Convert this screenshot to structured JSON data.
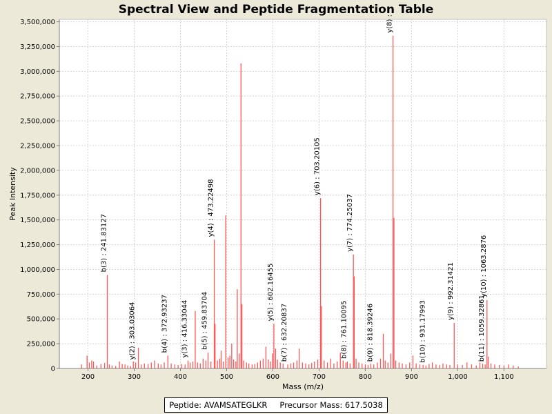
{
  "chart_data": {
    "type": "bar",
    "title": "Spectral View and Peptide Fragmentation Table",
    "xlabel": "Mass (m/z)",
    "ylabel": "Peak Intensity",
    "xlim": [
      138,
      1192
    ],
    "ylim": [
      0,
      3525000
    ],
    "x_ticks": [
      200,
      300,
      400,
      500,
      600,
      700,
      800,
      900,
      1000,
      1100
    ],
    "x_tick_labels": [
      "200",
      "300",
      "400",
      "500",
      "600",
      "700",
      "800",
      "900",
      "1,000",
      "1,100"
    ],
    "y_ticks": [
      0,
      250000,
      500000,
      750000,
      1000000,
      1250000,
      1500000,
      1750000,
      2000000,
      2250000,
      2500000,
      2750000,
      3000000,
      3250000,
      3500000
    ],
    "y_tick_labels": [
      "0",
      "250,000",
      "500,000",
      "750,000",
      "1,000,000",
      "1,250,000",
      "1,500,000",
      "1,750,000",
      "2,000,000",
      "2,250,000",
      "2,500,000",
      "2,750,000",
      "3,000,000",
      "3,250,000",
      "3,500,000"
    ],
    "grid": true,
    "bar_color": "#ff5555",
    "peaks": [
      {
        "mz": 186,
        "intensity": 40000
      },
      {
        "mz": 198,
        "intensity": 130000
      },
      {
        "mz": 203,
        "intensity": 60000
      },
      {
        "mz": 208,
        "intensity": 80000
      },
      {
        "mz": 212,
        "intensity": 70000
      },
      {
        "mz": 219,
        "intensity": 30000
      },
      {
        "mz": 228,
        "intensity": 45000
      },
      {
        "mz": 236,
        "intensity": 55000
      },
      {
        "mz": 241.83,
        "intensity": 945000
      },
      {
        "mz": 246,
        "intensity": 40000
      },
      {
        "mz": 252,
        "intensity": 30000
      },
      {
        "mz": 260,
        "intensity": 25000
      },
      {
        "mz": 268,
        "intensity": 70000
      },
      {
        "mz": 274,
        "intensity": 45000
      },
      {
        "mz": 280,
        "intensity": 40000
      },
      {
        "mz": 286,
        "intensity": 30000
      },
      {
        "mz": 292,
        "intensity": 25000
      },
      {
        "mz": 298,
        "intensity": 70000
      },
      {
        "mz": 303.03,
        "intensity": 60000
      },
      {
        "mz": 309,
        "intensity": 210000
      },
      {
        "mz": 315,
        "intensity": 40000
      },
      {
        "mz": 322,
        "intensity": 50000
      },
      {
        "mz": 330,
        "intensity": 45000
      },
      {
        "mz": 337,
        "intensity": 60000
      },
      {
        "mz": 344,
        "intensity": 80000
      },
      {
        "mz": 352,
        "intensity": 50000
      },
      {
        "mz": 358,
        "intensity": 40000
      },
      {
        "mz": 365,
        "intensity": 60000
      },
      {
        "mz": 372.93,
        "intensity": 130000
      },
      {
        "mz": 380,
        "intensity": 50000
      },
      {
        "mz": 388,
        "intensity": 40000
      },
      {
        "mz": 395,
        "intensity": 35000
      },
      {
        "mz": 403,
        "intensity": 45000
      },
      {
        "mz": 410,
        "intensity": 40000
      },
      {
        "mz": 416.33,
        "intensity": 80000
      },
      {
        "mz": 421,
        "intensity": 60000
      },
      {
        "mz": 427,
        "intensity": 70000
      },
      {
        "mz": 432,
        "intensity": 580000
      },
      {
        "mz": 437,
        "intensity": 60000
      },
      {
        "mz": 443,
        "intensity": 50000
      },
      {
        "mz": 449,
        "intensity": 100000
      },
      {
        "mz": 455,
        "intensity": 80000
      },
      {
        "mz": 459.84,
        "intensity": 160000
      },
      {
        "mz": 466,
        "intensity": 70000
      },
      {
        "mz": 473.22,
        "intensity": 1300000
      },
      {
        "mz": 475,
        "intensity": 450000
      },
      {
        "mz": 480,
        "intensity": 80000
      },
      {
        "mz": 485,
        "intensity": 100000
      },
      {
        "mz": 488,
        "intensity": 180000
      },
      {
        "mz": 493,
        "intensity": 70000
      },
      {
        "mz": 498,
        "intensity": 1545000
      },
      {
        "mz": 503,
        "intensity": 110000
      },
      {
        "mz": 507,
        "intensity": 130000
      },
      {
        "mz": 511,
        "intensity": 250000
      },
      {
        "mz": 515,
        "intensity": 90000
      },
      {
        "mz": 520,
        "intensity": 70000
      },
      {
        "mz": 523,
        "intensity": 800000
      },
      {
        "mz": 527,
        "intensity": 150000
      },
      {
        "mz": 531,
        "intensity": 3080000
      },
      {
        "mz": 533,
        "intensity": 650000
      },
      {
        "mz": 537,
        "intensity": 80000
      },
      {
        "mz": 543,
        "intensity": 60000
      },
      {
        "mz": 548,
        "intensity": 50000
      },
      {
        "mz": 555,
        "intensity": 40000
      },
      {
        "mz": 561,
        "intensity": 45000
      },
      {
        "mz": 567,
        "intensity": 60000
      },
      {
        "mz": 573,
        "intensity": 80000
      },
      {
        "mz": 579,
        "intensity": 100000
      },
      {
        "mz": 585,
        "intensity": 220000
      },
      {
        "mz": 590,
        "intensity": 90000
      },
      {
        "mz": 595,
        "intensity": 70000
      },
      {
        "mz": 599,
        "intensity": 150000
      },
      {
        "mz": 602.16,
        "intensity": 450000
      },
      {
        "mz": 606,
        "intensity": 200000
      },
      {
        "mz": 610,
        "intensity": 90000
      },
      {
        "mz": 616,
        "intensity": 60000
      },
      {
        "mz": 622,
        "intensity": 50000
      },
      {
        "mz": 632.21,
        "intensity": 40000
      },
      {
        "mz": 639,
        "intensity": 50000
      },
      {
        "mz": 645,
        "intensity": 60000
      },
      {
        "mz": 652,
        "intensity": 80000
      },
      {
        "mz": 657,
        "intensity": 200000
      },
      {
        "mz": 664,
        "intensity": 60000
      },
      {
        "mz": 671,
        "intensity": 50000
      },
      {
        "mz": 678,
        "intensity": 40000
      },
      {
        "mz": 684,
        "intensity": 55000
      },
      {
        "mz": 690,
        "intensity": 70000
      },
      {
        "mz": 697,
        "intensity": 90000
      },
      {
        "mz": 703.2,
        "intensity": 1720000
      },
      {
        "mz": 705,
        "intensity": 630000
      },
      {
        "mz": 711,
        "intensity": 80000
      },
      {
        "mz": 718,
        "intensity": 60000
      },
      {
        "mz": 725,
        "intensity": 100000
      },
      {
        "mz": 732,
        "intensity": 50000
      },
      {
        "mz": 739,
        "intensity": 70000
      },
      {
        "mz": 746,
        "intensity": 160000
      },
      {
        "mz": 752,
        "intensity": 80000
      },
      {
        "mz": 758,
        "intensity": 60000
      },
      {
        "mz": 761.1,
        "intensity": 70000
      },
      {
        "mz": 767,
        "intensity": 50000
      },
      {
        "mz": 774.25,
        "intensity": 1150000
      },
      {
        "mz": 776,
        "intensity": 930000
      },
      {
        "mz": 780,
        "intensity": 100000
      },
      {
        "mz": 786,
        "intensity": 60000
      },
      {
        "mz": 793,
        "intensity": 50000
      },
      {
        "mz": 800,
        "intensity": 40000
      },
      {
        "mz": 806,
        "intensity": 35000
      },
      {
        "mz": 812,
        "intensity": 50000
      },
      {
        "mz": 818.39,
        "intensity": 40000
      },
      {
        "mz": 826,
        "intensity": 60000
      },
      {
        "mz": 833,
        "intensity": 100000
      },
      {
        "mz": 839,
        "intensity": 350000
      },
      {
        "mz": 843,
        "intensity": 80000
      },
      {
        "mz": 849,
        "intensity": 60000
      },
      {
        "mz": 855,
        "intensity": 150000
      },
      {
        "mz": 860,
        "intensity": 3360000
      },
      {
        "mz": 862,
        "intensity": 1520000
      },
      {
        "mz": 866,
        "intensity": 80000
      },
      {
        "mz": 873,
        "intensity": 60000
      },
      {
        "mz": 880,
        "intensity": 50000
      },
      {
        "mz": 888,
        "intensity": 40000
      },
      {
        "mz": 896,
        "intensity": 60000
      },
      {
        "mz": 903,
        "intensity": 130000
      },
      {
        "mz": 910,
        "intensity": 50000
      },
      {
        "mz": 918,
        "intensity": 40000
      },
      {
        "mz": 925,
        "intensity": 35000
      },
      {
        "mz": 931.18,
        "intensity": 30000
      },
      {
        "mz": 938,
        "intensity": 45000
      },
      {
        "mz": 945,
        "intensity": 60000
      },
      {
        "mz": 953,
        "intensity": 40000
      },
      {
        "mz": 961,
        "intensity": 35000
      },
      {
        "mz": 968,
        "intensity": 50000
      },
      {
        "mz": 976,
        "intensity": 40000
      },
      {
        "mz": 983,
        "intensity": 35000
      },
      {
        "mz": 992.31,
        "intensity": 460000
      },
      {
        "mz": 1000,
        "intensity": 40000
      },
      {
        "mz": 1010,
        "intensity": 35000
      },
      {
        "mz": 1020,
        "intensity": 60000
      },
      {
        "mz": 1030,
        "intensity": 40000
      },
      {
        "mz": 1040,
        "intensity": 30000
      },
      {
        "mz": 1048,
        "intensity": 60000
      },
      {
        "mz": 1054,
        "intensity": 50000
      },
      {
        "mz": 1059.33,
        "intensity": 40000
      },
      {
        "mz": 1063.29,
        "intensity": 690000
      },
      {
        "mz": 1066,
        "intensity": 120000
      },
      {
        "mz": 1072,
        "intensity": 50000
      },
      {
        "mz": 1080,
        "intensity": 40000
      },
      {
        "mz": 1090,
        "intensity": 35000
      },
      {
        "mz": 1100,
        "intensity": 30000
      },
      {
        "mz": 1110,
        "intensity": 40000
      },
      {
        "mz": 1120,
        "intensity": 30000
      },
      {
        "mz": 1131,
        "intensity": 20000
      }
    ],
    "annotations": [
      {
        "label": "b(3) : 241.83127",
        "mz": 241.83,
        "intensity": 945000
      },
      {
        "label": "y(2) : 303.03064",
        "mz": 303.03,
        "intensity": 60000
      },
      {
        "label": "b(4) : 372.93237",
        "mz": 372.93,
        "intensity": 130000
      },
      {
        "label": "y(3) : 416.33044",
        "mz": 416.33,
        "intensity": 80000
      },
      {
        "label": "b(5) : 459.83704",
        "mz": 459.84,
        "intensity": 160000
      },
      {
        "label": "y(4) : 473.22498",
        "mz": 473.22,
        "intensity": 1300000
      },
      {
        "label": "y(5) : 602.16455",
        "mz": 602.16,
        "intensity": 450000
      },
      {
        "label": "b(7) : 632.20837",
        "mz": 632.21,
        "intensity": 40000
      },
      {
        "label": "y(6) : 703.20105",
        "mz": 703.2,
        "intensity": 1720000
      },
      {
        "label": "b(8) : 761.10095",
        "mz": 761.1,
        "intensity": 70000
      },
      {
        "label": "y(7) : 774.25037",
        "mz": 774.25,
        "intensity": 1150000
      },
      {
        "label": "b(9) : 818.39246",
        "mz": 818.39,
        "intensity": 40000
      },
      {
        "label": "y(8) :",
        "mz": 860,
        "intensity": 3360000
      },
      {
        "label": "b(10) : 931.17993",
        "mz": 931.18,
        "intensity": 30000
      },
      {
        "label": "y(9) : 992.31421",
        "mz": 992.31,
        "intensity": 460000
      },
      {
        "label": "b(11) : 1059.32861",
        "mz": 1059.33,
        "intensity": 40000
      },
      {
        "label": "y(10) : 1063.2876",
        "mz": 1063.29,
        "intensity": 690000
      }
    ],
    "legend": {
      "peptide_text": "Peptide: AVAMSATEGLKR",
      "precursor_text": "Precursor Mass: 617.5038"
    }
  }
}
